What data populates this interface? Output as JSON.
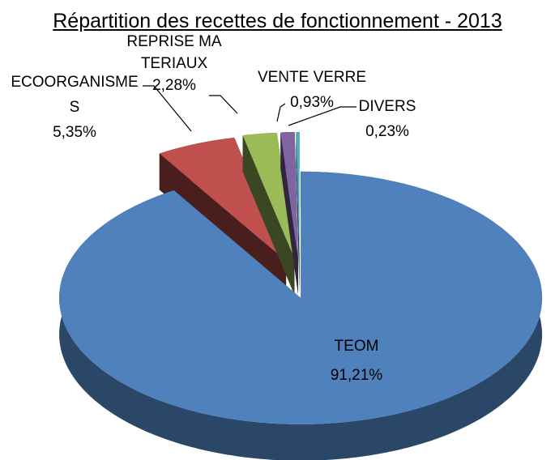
{
  "chart_data": {
    "type": "pie",
    "title": "Répartition des recettes de fonctionnement - 2013",
    "categories": [
      "TEOM",
      "ECOORGANISMES",
      "REPRISE MATERIAUX",
      "VENTE VERRE",
      "DIVERS"
    ],
    "values": [
      91.21,
      5.35,
      2.28,
      0.93,
      0.23
    ],
    "value_labels": [
      "91,21%",
      "5,35%",
      "2,28%",
      "0,93%",
      "0,23%"
    ],
    "colors": [
      "#4f81bd",
      "#c0504d",
      "#9bbb59",
      "#8064a2",
      "#4bacc6"
    ]
  }
}
